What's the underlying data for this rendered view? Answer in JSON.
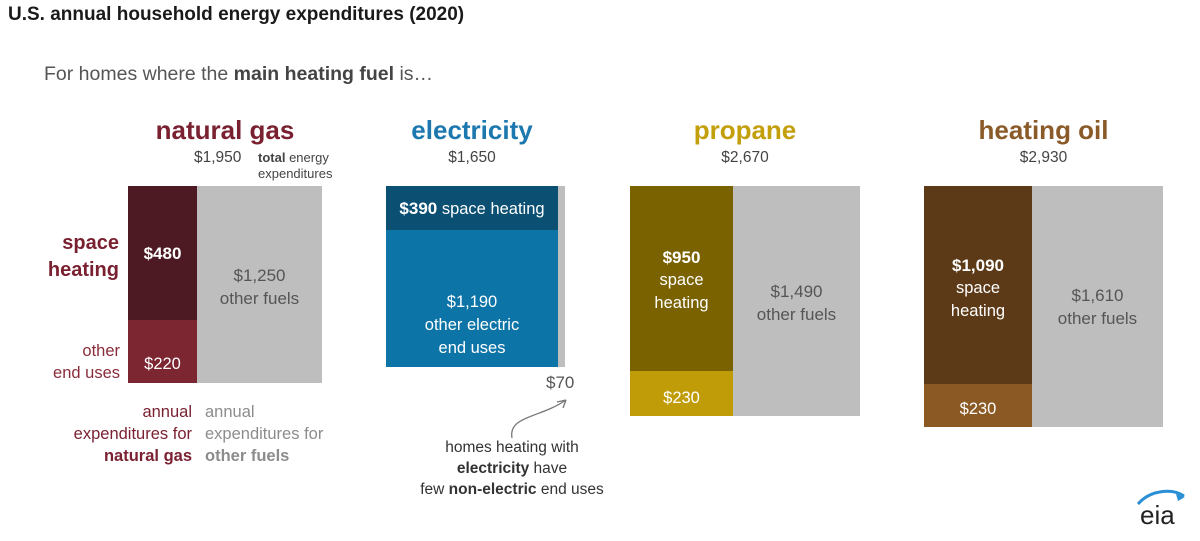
{
  "title": "U.S. annual household energy expenditures (2020)",
  "subtitle": {
    "prefix": "For homes where the ",
    "bold": "main heating fuel",
    "suffix": " is…"
  },
  "colors": {
    "natural_gas_heat": "#4d1a23",
    "natural_gas_other": "#7c2632",
    "natural_gas_text": "#7a2131",
    "electricity_heat": "#0b4f72",
    "electricity_other": "#0d74a7",
    "electricity_text": "#1c78ae",
    "propane_heat": "#7a6200",
    "propane_other": "#c09c08",
    "propane_text": "#c39f0c",
    "heating_oil_heat": "#5c3a17",
    "heating_oil_other": "#8b5923",
    "heating_oil_text": "#8a5a28",
    "other_fuels": "#bebebe",
    "label_text": "#555555"
  },
  "chart_data": {
    "type": "bar",
    "title": "U.S. annual household energy expenditures (2020)",
    "units": "USD per household per year",
    "categories": [
      "natural gas",
      "electricity",
      "propane",
      "heating oil"
    ],
    "totals": [
      1950,
      1650,
      2670,
      2930
    ],
    "total_labels": [
      "$1,950",
      "$1,650",
      "$2,670",
      "$2,930"
    ],
    "total_note": [
      "total energy",
      "expenditures"
    ],
    "total_note_bold": "total",
    "series": [
      {
        "name": "space heating",
        "values": [
          480,
          390,
          950,
          1090
        ],
        "labels": [
          "$480",
          "$390",
          "$950",
          "$1,090"
        ]
      },
      {
        "name": "other end uses (main heating fuel)",
        "values": [
          220,
          1190,
          230,
          230
        ],
        "labels": [
          "$220",
          "$1,190",
          "$230",
          "$230"
        ]
      },
      {
        "name": "other fuels",
        "values": [
          1250,
          70,
          1490,
          1610
        ],
        "labels": [
          "$1,250",
          "$70",
          "$1,490",
          "$1,610"
        ]
      }
    ]
  },
  "labels": {
    "space_heating_lines": [
      "space",
      "heating"
    ],
    "other_end_uses_lines": [
      "other",
      "end uses"
    ],
    "seg_space_heating_lines": [
      "space",
      "heating"
    ],
    "space_heating_inline": "space heating",
    "other_fuels": "other fuels",
    "other_electric_lines": [
      "other electric",
      "end uses"
    ],
    "legend_fuel_lines": [
      "annual",
      "expenditures for"
    ],
    "legend_fuel_bold": "natural gas",
    "legend_other_lines": [
      "annual",
      "expenditures for"
    ],
    "legend_other_bold": "other fuels"
  },
  "note": {
    "line1": "homes heating with",
    "line2_bold": "electricity",
    "line2_rest": " have",
    "line3_prefix": "few ",
    "line3_bold": "non-electric",
    "line3_rest": " end uses"
  },
  "logo": "eia"
}
